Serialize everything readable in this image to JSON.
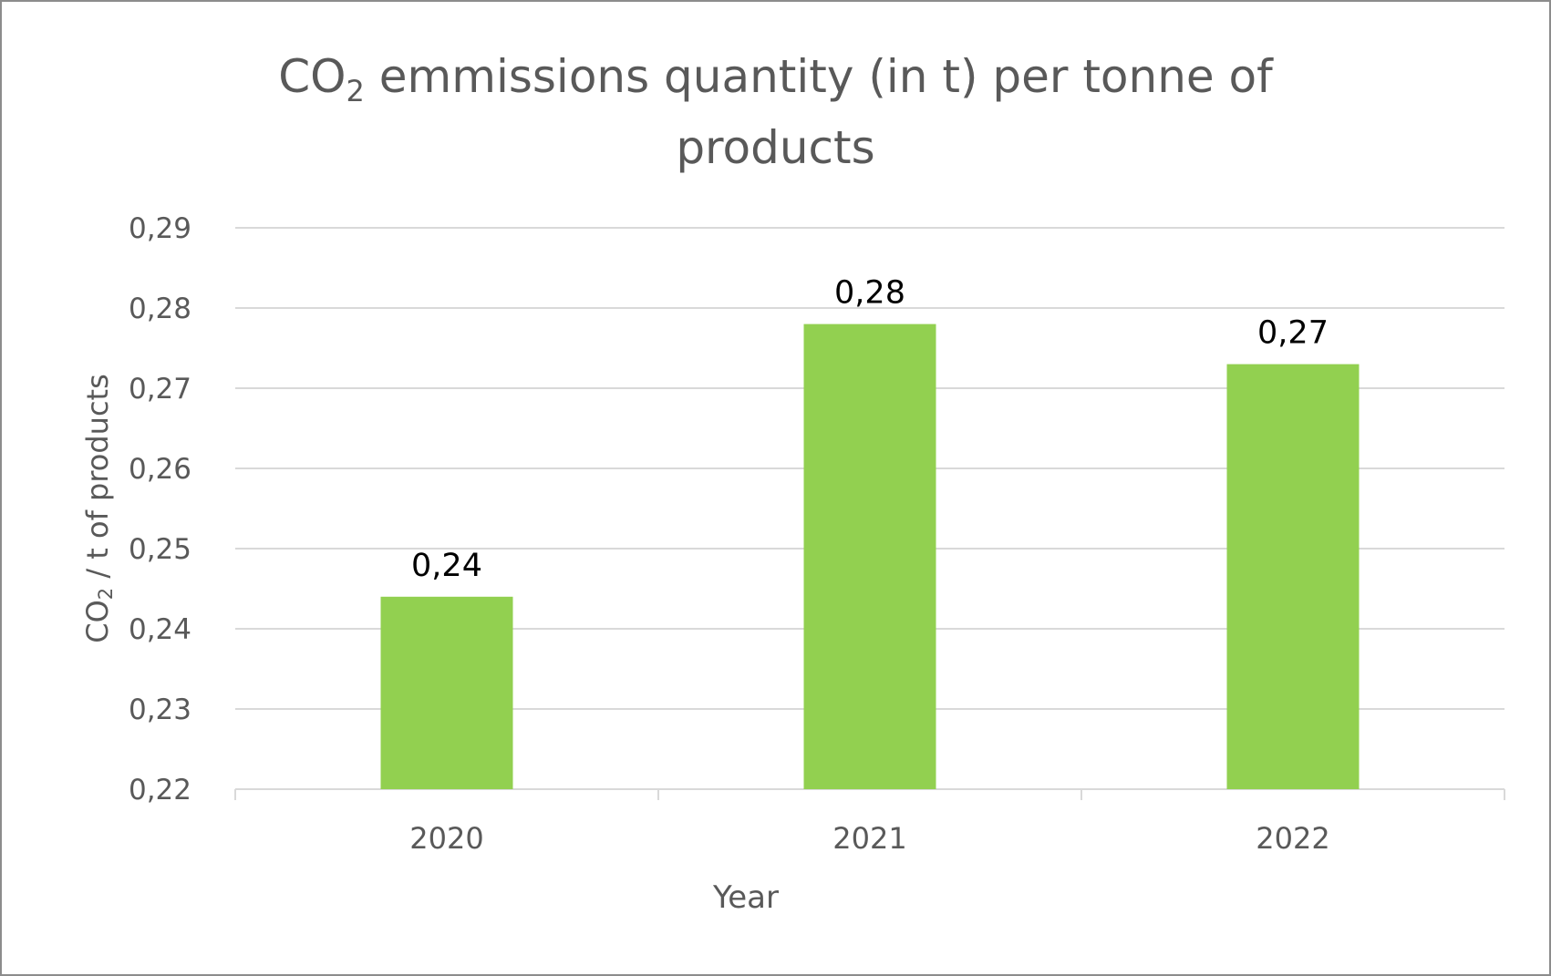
{
  "chart_data": {
    "type": "bar",
    "title": {
      "pre": "CO",
      "sub": "2",
      "post": " emmissions quantity (in t) per tonne of",
      "line2": "products"
    },
    "ylabel": {
      "pre": "CO",
      "sub": "2",
      "post": " / t  of products"
    },
    "xlabel": "Year",
    "categories": [
      "2020",
      "2021",
      "2022"
    ],
    "values": [
      0.244,
      0.278,
      0.273
    ],
    "value_labels": [
      "0,24",
      "0,28",
      "0,27"
    ],
    "y_ticks": [
      0.22,
      0.23,
      0.24,
      0.25,
      0.26,
      0.27,
      0.28,
      0.29
    ],
    "y_tick_labels": [
      "0,22",
      "0,23",
      "0,24",
      "0,25",
      "0,26",
      "0,27",
      "0,28",
      "0,29"
    ],
    "ylim": [
      0.22,
      0.29
    ],
    "grid": true,
    "legend": "none",
    "colors": {
      "bar": "#92d050",
      "grid": "#d9d9d9",
      "axis": "#d9d9d9",
      "text": "#595959",
      "label": "#000000"
    }
  }
}
